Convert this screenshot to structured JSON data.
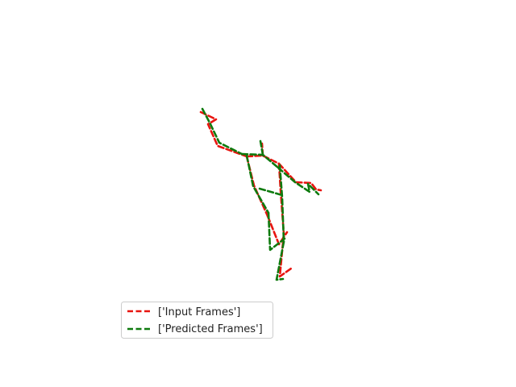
{
  "figure": {
    "colors": {
      "input": "#e8140f",
      "predicted": "#0e7a0e",
      "legend_border": "#cccccc"
    }
  },
  "legend": {
    "items": [
      {
        "label": "['Input Frames']",
        "color": "#e8140f"
      },
      {
        "label": "['Predicted Frames']",
        "color": "#0e7a0e"
      }
    ]
  }
}
